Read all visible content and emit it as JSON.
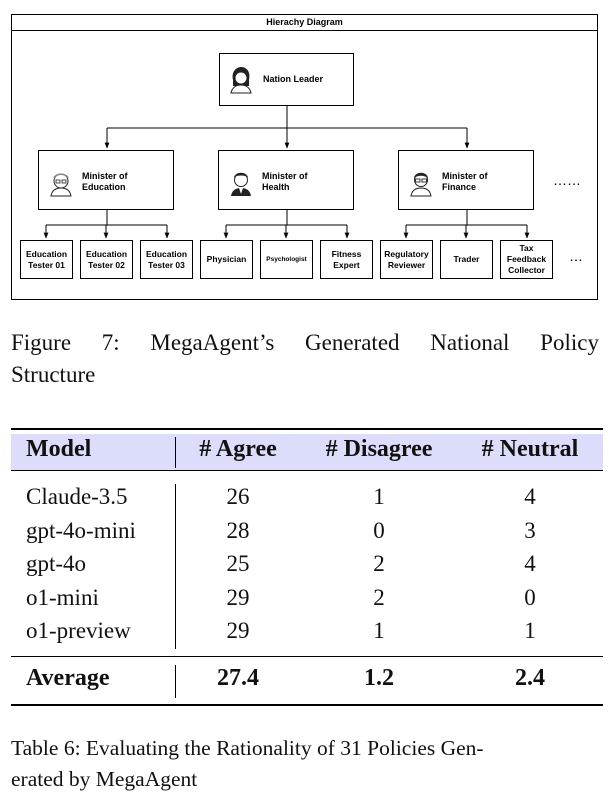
{
  "diagram": {
    "title": "Hierachy Diagram",
    "root": {
      "label": "Nation Leader",
      "icon": "woman-avatar-icon"
    },
    "ministers": [
      {
        "label": "Minister of\nEducation",
        "icon": "elderly-man-glasses-avatar-icon",
        "children": [
          "Education\nTester 01",
          "Education\nTester 02",
          "Education\nTester 03"
        ]
      },
      {
        "label": "Minister of\nHealth",
        "icon": "man-suit-avatar-icon",
        "children": [
          "Physician",
          "Psychologist",
          "Fitness\nExpert"
        ]
      },
      {
        "label": "Minister of\nFinance",
        "icon": "man-glasses-avatar-icon",
        "children": [
          "Regulatory\nReviewer",
          "Trader",
          "Tax\nFeedback\nCollector"
        ]
      }
    ],
    "ellipsis_ministers": "……",
    "ellipsis_leaves": "…"
  },
  "figure_caption": {
    "line1_words": [
      "Figure",
      "7:",
      "MegaAgent’s",
      "Generated",
      "National",
      "Policy"
    ],
    "line2": "Structure"
  },
  "table": {
    "headers": [
      "Model",
      "# Agree",
      "# Disagree",
      "# Neutral"
    ],
    "rows": [
      [
        "Claude-3.5",
        "26",
        "1",
        "4"
      ],
      [
        "gpt-4o-mini",
        "28",
        "0",
        "3"
      ],
      [
        "gpt-4o",
        "25",
        "2",
        "4"
      ],
      [
        "o1-mini",
        "29",
        "2",
        "0"
      ],
      [
        "o1-preview",
        "29",
        "1",
        "1"
      ]
    ],
    "average": [
      "Average",
      "27.4",
      "1.2",
      "2.4"
    ],
    "header_color": "#dcdcfb"
  },
  "table_caption": {
    "line1": "Table 6: Evaluating the Rationality of 31 Policies Gen-",
    "line2": "erated by MegaAgent"
  }
}
